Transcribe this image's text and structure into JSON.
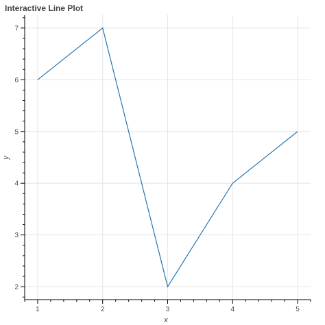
{
  "chart_data": {
    "type": "line",
    "title": "Interactive Line Plot",
    "xlabel": "x",
    "ylabel": "y",
    "x": [
      1,
      2,
      3,
      4,
      5
    ],
    "series": [
      {
        "values": [
          6,
          7,
          2,
          4,
          5
        ]
      }
    ],
    "x_ticks": [
      1,
      2,
      3,
      4,
      5
    ],
    "y_ticks": [
      2,
      3,
      4,
      5,
      6,
      7
    ],
    "xlim": [
      0.8,
      5.2
    ],
    "ylim": [
      1.75,
      7.25
    ],
    "grid": true,
    "colors": {
      "line": "#1f77b4",
      "grid": "#e5e5e5",
      "axis": "#000000",
      "text": "#444444"
    }
  }
}
